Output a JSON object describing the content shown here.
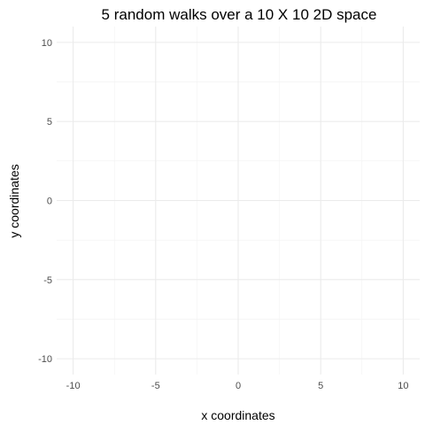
{
  "chart_data": {
    "type": "line",
    "title": "5 random walks over a 10 X 10 2D space",
    "xlabel": "x coordinates",
    "ylabel": "y coordinates",
    "xlim": [
      -11,
      11
    ],
    "ylim": [
      -11,
      11
    ],
    "x_ticks": [
      -10,
      -5,
      0,
      5,
      10
    ],
    "y_ticks": [
      -10,
      -5,
      0,
      5,
      10
    ],
    "x_tick_labels": [
      "-10",
      "-5",
      "0",
      "5",
      "10"
    ],
    "y_tick_labels": [
      "-10",
      "-5",
      "0",
      "5",
      "10"
    ],
    "grid": true,
    "series": []
  },
  "colors": {
    "grid_major": "#ebebeb",
    "grid_minor": "#f2f2f2",
    "tick_text": "#4d4d4d",
    "title_text": "#000000"
  }
}
